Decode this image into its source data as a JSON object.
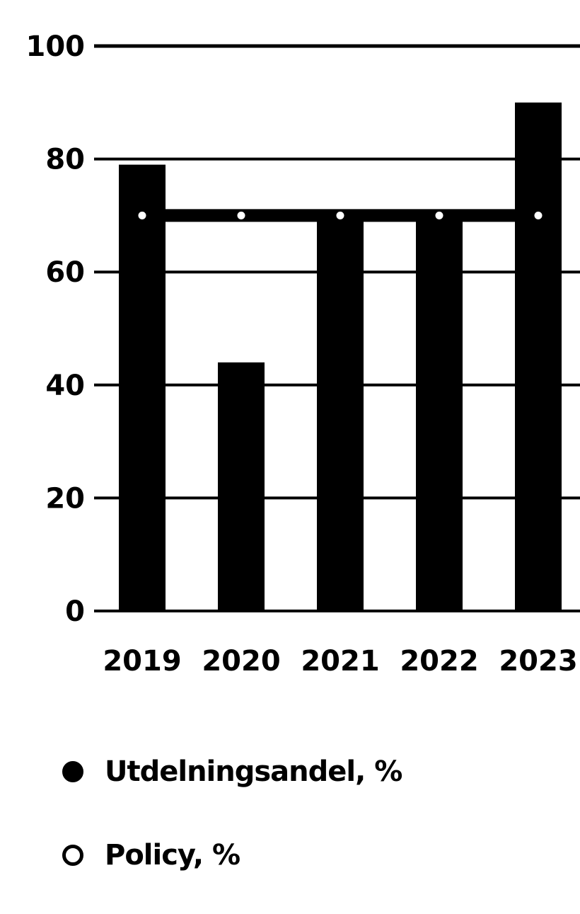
{
  "chart_data": {
    "type": "bar",
    "categories": [
      "2019",
      "2020",
      "2021",
      "2022",
      "2023"
    ],
    "series": [
      {
        "name": "Utdelningsandel, %",
        "kind": "bar",
        "values": [
          79,
          44,
          69,
          69,
          90
        ]
      },
      {
        "name": "Policy, %",
        "kind": "line",
        "values": [
          70,
          70,
          70,
          70,
          70
        ]
      }
    ],
    "title": "",
    "xlabel": "",
    "ylabel": "",
    "ylim": [
      0,
      100
    ],
    "yticks": [
      0,
      20,
      40,
      60,
      80,
      100
    ],
    "grid": true,
    "legend_position": "bottom-left",
    "colors": {
      "bar": "#000000",
      "policy_line": "#000000",
      "grid": "#000000",
      "background": "#ffffff"
    }
  }
}
